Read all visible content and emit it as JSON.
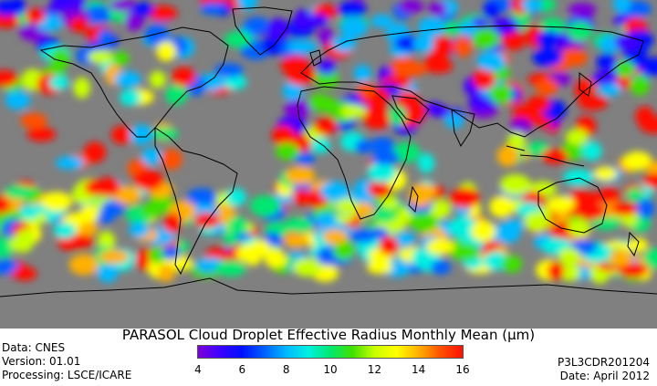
{
  "title": "PARASOL Cloud Droplet Effective Radius Monthly Mean (µm)",
  "info_left": [
    "Data: CNES",
    "Version: 01.01",
    "Processing: LSCE/ICARE"
  ],
  "info_right": [
    "P3L3CDR201204",
    "Date: April 2012"
  ],
  "colorbar": {
    "range": [
      4,
      16
    ],
    "ticks": [
      4,
      6,
      8,
      10,
      12,
      14,
      16
    ],
    "colors": [
      "#7d00d8",
      "#3c00ff",
      "#0010ff",
      "#0060ff",
      "#00b8ff",
      "#00f0e0",
      "#00e870",
      "#40e000",
      "#c8ff00",
      "#ffff00",
      "#ffb000",
      "#ff5000",
      "#ff1000"
    ]
  },
  "map": {
    "land_color": "#808080",
    "coast_color": "#000000"
  }
}
